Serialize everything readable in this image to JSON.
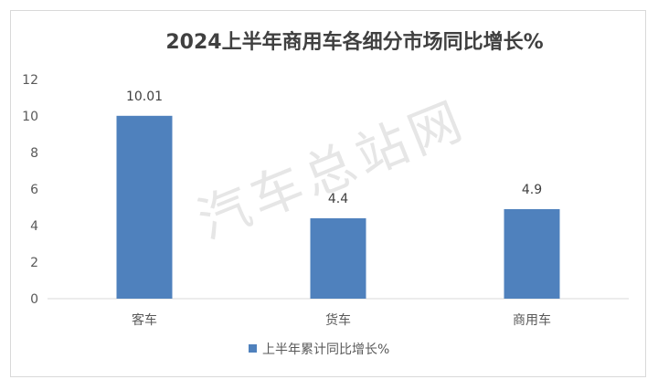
{
  "watermark": "汽车总站网",
  "chart_data": {
    "type": "bar",
    "title": "2024上半年商用车各细分市场同比增长%",
    "categories": [
      "客车",
      "货车",
      "商用车"
    ],
    "series": [
      {
        "name": "上半年累计同比增长%",
        "values": [
          10.01,
          4.4,
          4.9
        ],
        "labels": [
          "10.01",
          "4.4",
          "4.9"
        ]
      }
    ],
    "ylim": [
      0,
      12
    ],
    "yticks": [
      0,
      2,
      4,
      6,
      8,
      10,
      12
    ],
    "grid": false,
    "legend": "bottom",
    "colors": {
      "bar": "#4f81bd"
    }
  }
}
